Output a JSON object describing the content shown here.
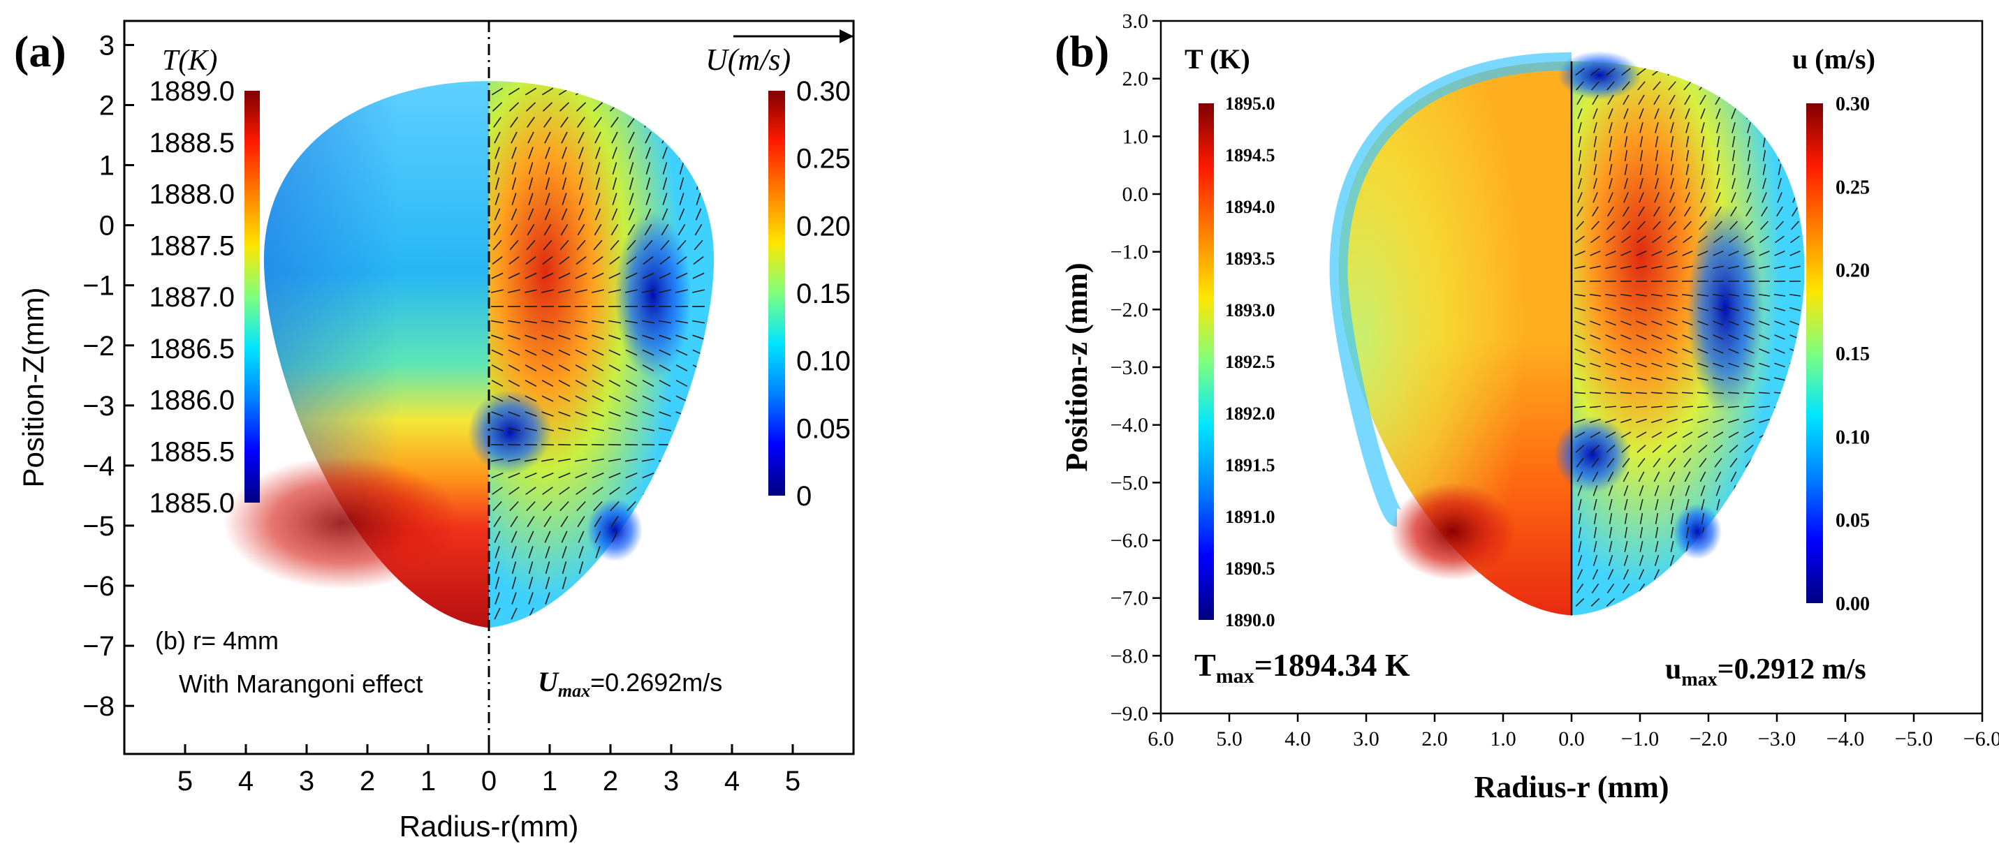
{
  "chart_data": [
    {
      "type": "heatmap",
      "panel_label": "(a)",
      "xlabel": "Radius-r(mm)",
      "ylabel": "Position-Z(mm)",
      "x_tick_labels": [
        "5",
        "4",
        "3",
        "2",
        "1",
        "0",
        "1",
        "2",
        "3",
        "4",
        "5"
      ],
      "x_tick_values": [
        5,
        4,
        3,
        2,
        1,
        0,
        -1,
        -2,
        -3,
        -4,
        -5
      ],
      "y_tick_labels": [
        "3",
        "2",
        "1",
        "0",
        "−1",
        "−2",
        "−3",
        "−4",
        "−5",
        "−6",
        "−7",
        "−8"
      ],
      "y_tick_values": [
        3,
        2,
        1,
        0,
        -1,
        -2,
        -3,
        -4,
        -5,
        -6,
        -7,
        -8
      ],
      "xlim": [
        6,
        -6
      ],
      "ylim": [
        -8.8,
        3.4
      ],
      "temperature_colorbar": {
        "title": "T(K)",
        "tick_labels": [
          "1889.0",
          "1888.5",
          "1888.0",
          "1887.5",
          "1887.0",
          "1886.5",
          "1886.0",
          "1885.5",
          "1885.0"
        ],
        "range": [
          1885.0,
          1889.0
        ]
      },
      "velocity_colorbar": {
        "title": "U(m/s)",
        "tick_labels": [
          "0.30",
          "0.25",
          "0.20",
          "0.15",
          "0.10",
          "0.05",
          "0"
        ],
        "range": [
          0,
          0.3
        ]
      },
      "annotations": {
        "case_line1": "(b) r= 4mm",
        "case_line2": "With Marangoni effect",
        "umax_symbol": "U",
        "umax_subscript": "max",
        "umax_value": "=0.2692m/s"
      },
      "pool": {
        "top_z": 2.4,
        "bottom_z": -6.7,
        "max_radius": 3.7,
        "max_radius_z": -0.7
      },
      "axis_divider": "dash-dot vertical line at r = 0"
    },
    {
      "type": "heatmap",
      "panel_label": "(b)",
      "xlabel": "Radius-r (mm)",
      "ylabel": "Position-z (mm)",
      "x_tick_labels": [
        "6.0",
        "5.0",
        "4.0",
        "3.0",
        "2.0",
        "1.0",
        "0.0",
        "−1.0",
        "−2.0",
        "−3.0",
        "−4.0",
        "−5.0",
        "−6.0"
      ],
      "x_tick_values": [
        6,
        5,
        4,
        3,
        2,
        1,
        0,
        -1,
        -2,
        -3,
        -4,
        -5,
        -6
      ],
      "y_tick_labels": [
        "3.0",
        "2.0",
        "1.0",
        "0.0",
        "−1.0",
        "−2.0",
        "−3.0",
        "−4.0",
        "−5.0",
        "−6.0",
        "−7.0",
        "−8.0",
        "−9.0"
      ],
      "y_tick_values": [
        3,
        2,
        1,
        0,
        -1,
        -2,
        -3,
        -4,
        -5,
        -6,
        -7,
        -8,
        -9
      ],
      "xlim": [
        6,
        -6
      ],
      "ylim": [
        -9,
        3
      ],
      "temperature_colorbar": {
        "title": "T (K)",
        "tick_labels": [
          "1895.0",
          "1894.5",
          "1894.0",
          "1893.5",
          "1893.0",
          "1892.5",
          "1892.0",
          "1891.5",
          "1891.0",
          "1890.5",
          "1890.0"
        ],
        "range": [
          1890.0,
          1895.0
        ]
      },
      "velocity_colorbar": {
        "title": "u (m/s)",
        "tick_labels": [
          "0.30",
          "0.25",
          "0.20",
          "0.15",
          "0.10",
          "0.05",
          "0.00"
        ],
        "range": [
          0,
          0.3
        ]
      },
      "annotations": {
        "tmax_symbol": "T",
        "tmax_subscript": "max",
        "tmax_value": "=1894.34 K",
        "umax_symbol": "u",
        "umax_subscript": "max",
        "umax_value": "=0.2912 m/s"
      },
      "pool": {
        "top_z": 2.3,
        "bottom_z": -7.3,
        "max_radius": 3.4,
        "max_radius_z": -1.5
      }
    }
  ]
}
